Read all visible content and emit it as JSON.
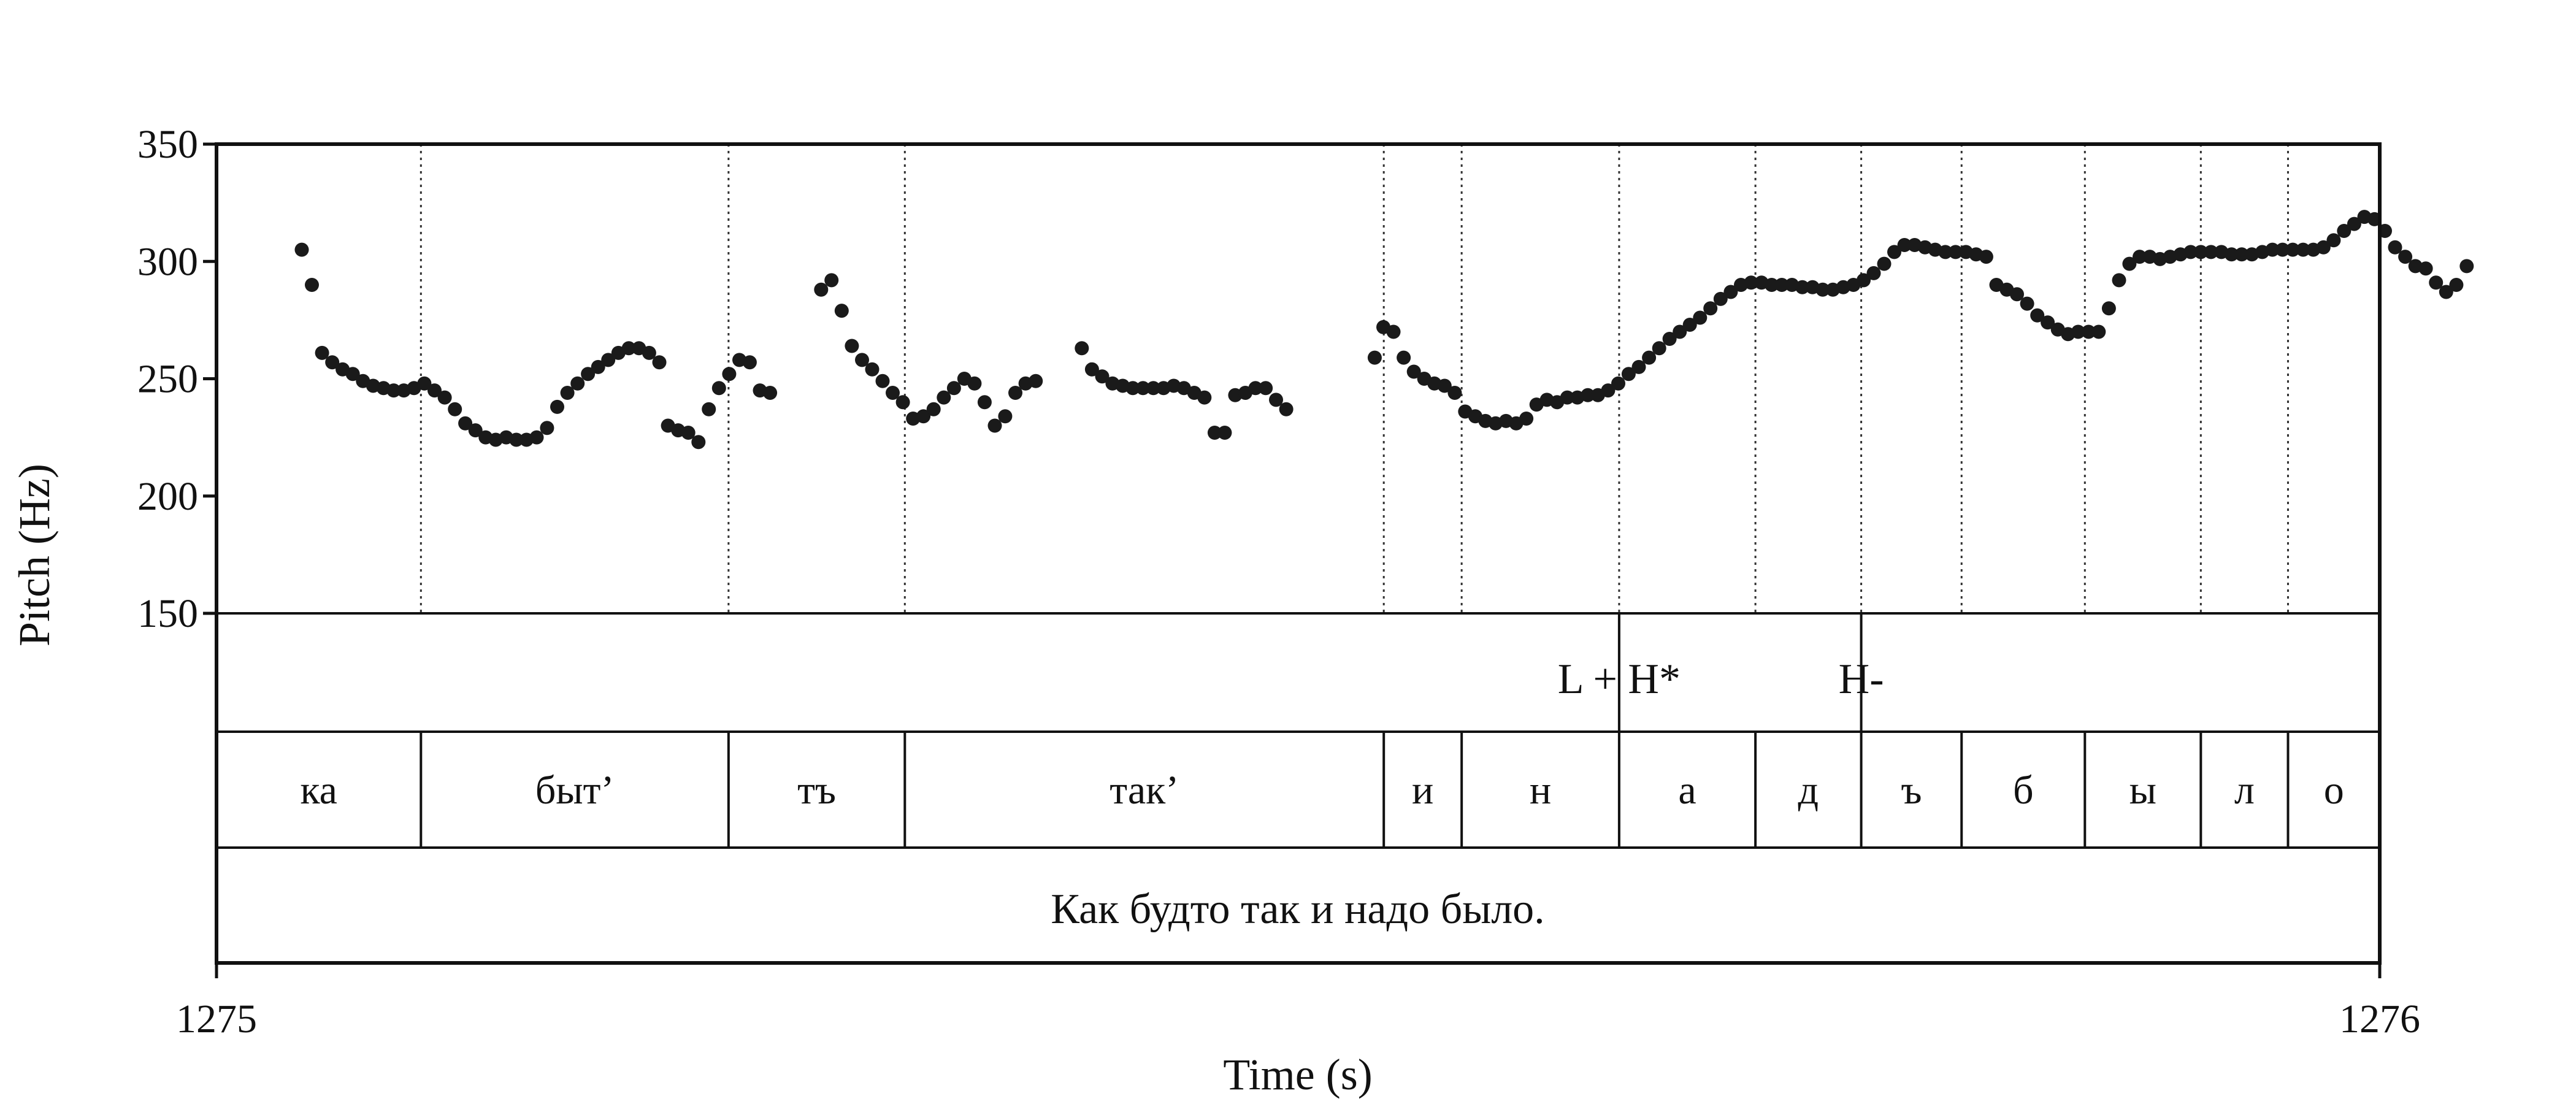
{
  "chart_data": {
    "type": "scatter",
    "title": "",
    "xlabel": "Time (s)",
    "ylabel": "Pitch (Hz)",
    "xlim": [
      1275,
      1276
    ],
    "ylim": [
      150,
      350
    ],
    "xticks": [
      "1275",
      "1276"
    ],
    "yticks": [
      "150",
      "200",
      "250",
      "300",
      "350"
    ],
    "grid": false,
    "marker_color": "#1a1a1a",
    "boundaries": [
      1275.0,
      1275.0945,
      1275.2367,
      1275.3182,
      1275.5396,
      1275.5756,
      1275.6484,
      1275.7114,
      1275.7603,
      1275.8067,
      1275.8637,
      1275.9173,
      1275.9576,
      1276.0
    ],
    "syllables": [
      "ка",
      "быт’",
      "тъ",
      "так’",
      "и",
      "н",
      "а",
      "д",
      "ъ",
      "б",
      "ы",
      "л",
      "о"
    ],
    "tones": [
      {
        "time": 1275.6484,
        "label": "L + H*"
      },
      {
        "time": 1275.7603,
        "label": "H-"
      }
    ],
    "sentence": "Как будто так и надо было.",
    "series": [
      {
        "points": [
          [
            1275.0394,
            305
          ],
          [
            1275.0441,
            290
          ],
          [
            1275.0488,
            261
          ],
          [
            1275.0535,
            257
          ],
          [
            1275.0583,
            254
          ],
          [
            1275.063,
            252
          ],
          [
            1275.0677,
            249
          ],
          [
            1275.0724,
            247
          ],
          [
            1275.0772,
            246
          ],
          [
            1275.0819,
            245
          ],
          [
            1275.0866,
            245
          ],
          [
            1275.0913,
            246
          ],
          [
            1275.0961,
            248
          ],
          [
            1275.1008,
            245
          ],
          [
            1275.1055,
            242
          ],
          [
            1275.1102,
            237
          ],
          [
            1275.115,
            231
          ],
          [
            1275.1197,
            228
          ],
          [
            1275.1244,
            225
          ],
          [
            1275.1291,
            224
          ],
          [
            1275.1339,
            225
          ],
          [
            1275.1386,
            224
          ],
          [
            1275.1433,
            224
          ],
          [
            1275.148,
            225
          ],
          [
            1275.1528,
            229
          ],
          [
            1275.1575,
            238
          ],
          [
            1275.1622,
            244
          ],
          [
            1275.1669,
            248
          ],
          [
            1275.1717,
            252
          ],
          [
            1275.1764,
            255
          ],
          [
            1275.1811,
            258
          ],
          [
            1275.1858,
            261
          ],
          [
            1275.1906,
            263
          ],
          [
            1275.1953,
            263
          ],
          [
            1275.2,
            261
          ],
          [
            1275.2047,
            257
          ],
          [
            1275.2087,
            230
          ],
          [
            1275.2134,
            228
          ],
          [
            1275.2181,
            227
          ],
          [
            1275.2228,
            223
          ],
          [
            1275.2276,
            237
          ],
          [
            1275.2323,
            246
          ],
          [
            1275.237,
            252
          ],
          [
            1275.2417,
            258
          ],
          [
            1275.2465,
            257
          ],
          [
            1275.2512,
            245
          ],
          [
            1275.2559,
            244
          ],
          [
            1275.2795,
            288
          ],
          [
            1275.2843,
            292
          ],
          [
            1275.289,
            279
          ],
          [
            1275.2937,
            264
          ],
          [
            1275.2984,
            258
          ],
          [
            1275.3031,
            254
          ],
          [
            1275.3079,
            249
          ],
          [
            1275.3126,
            244
          ],
          [
            1275.3173,
            240
          ],
          [
            1275.322,
            233
          ],
          [
            1275.3268,
            234
          ],
          [
            1275.3315,
            237
          ],
          [
            1275.3362,
            242
          ],
          [
            1275.3409,
            246
          ],
          [
            1275.3457,
            250
          ],
          [
            1275.3504,
            248
          ],
          [
            1275.3551,
            240
          ],
          [
            1275.3598,
            230
          ],
          [
            1275.3646,
            234
          ],
          [
            1275.3693,
            244
          ],
          [
            1275.374,
            248
          ],
          [
            1275.3787,
            249
          ],
          [
            1275.4,
            263
          ],
          [
            1275.4047,
            254
          ],
          [
            1275.4094,
            251
          ],
          [
            1275.4142,
            248
          ],
          [
            1275.4189,
            247
          ],
          [
            1275.4236,
            246
          ],
          [
            1275.4283,
            246
          ],
          [
            1275.4331,
            246
          ],
          [
            1275.4378,
            246
          ],
          [
            1275.4425,
            247
          ],
          [
            1275.4472,
            246
          ],
          [
            1275.452,
            244
          ],
          [
            1275.4567,
            242
          ],
          [
            1275.4614,
            227
          ],
          [
            1275.4661,
            227
          ],
          [
            1275.4709,
            243
          ],
          [
            1275.4756,
            244
          ],
          [
            1275.4803,
            246
          ],
          [
            1275.485,
            246
          ],
          [
            1275.4898,
            241
          ],
          [
            1275.4945,
            237
          ],
          [
            1275.5354,
            259
          ],
          [
            1275.5394,
            272
          ],
          [
            1275.5441,
            270
          ],
          [
            1275.5488,
            259
          ],
          [
            1275.5535,
            253
          ],
          [
            1275.5583,
            250
          ],
          [
            1275.563,
            248
          ],
          [
            1275.5677,
            247
          ],
          [
            1275.5724,
            244
          ],
          [
            1275.5772,
            236
          ],
          [
            1275.5819,
            234
          ],
          [
            1275.5866,
            232
          ],
          [
            1275.5913,
            231
          ],
          [
            1275.5961,
            232
          ],
          [
            1275.6008,
            231
          ],
          [
            1275.6055,
            233
          ],
          [
            1275.6102,
            239
          ],
          [
            1275.615,
            241
          ],
          [
            1275.6197,
            240
          ],
          [
            1275.6244,
            242
          ],
          [
            1275.6291,
            242
          ],
          [
            1275.6339,
            243
          ],
          [
            1275.6386,
            243
          ],
          [
            1275.6433,
            245
          ],
          [
            1275.648,
            248
          ],
          [
            1275.6528,
            252
          ],
          [
            1275.6575,
            255
          ],
          [
            1275.6622,
            259
          ],
          [
            1275.6669,
            263
          ],
          [
            1275.6717,
            267
          ],
          [
            1275.6764,
            270
          ],
          [
            1275.6811,
            273
          ],
          [
            1275.6858,
            276
          ],
          [
            1275.6906,
            280
          ],
          [
            1275.6953,
            284
          ],
          [
            1275.7,
            287
          ],
          [
            1275.7047,
            290
          ],
          [
            1275.7094,
            291
          ],
          [
            1275.7142,
            291
          ],
          [
            1275.7189,
            290
          ],
          [
            1275.7236,
            290
          ],
          [
            1275.7283,
            290
          ],
          [
            1275.7331,
            289
          ],
          [
            1275.7378,
            289
          ],
          [
            1275.7425,
            288
          ],
          [
            1275.7472,
            288
          ],
          [
            1275.752,
            289
          ],
          [
            1275.7567,
            290
          ],
          [
            1275.7614,
            292
          ],
          [
            1275.7661,
            295
          ],
          [
            1275.7709,
            299
          ],
          [
            1275.7756,
            304
          ],
          [
            1275.7803,
            307
          ],
          [
            1275.785,
            307
          ],
          [
            1275.7898,
            306
          ],
          [
            1275.7945,
            305
          ],
          [
            1275.7992,
            304
          ],
          [
            1275.8039,
            304
          ],
          [
            1275.8087,
            304
          ],
          [
            1275.8134,
            303
          ],
          [
            1275.8181,
            302
          ],
          [
            1275.8228,
            290
          ],
          [
            1275.8276,
            288
          ],
          [
            1275.8323,
            286
          ],
          [
            1275.837,
            282
          ],
          [
            1275.8417,
            277
          ],
          [
            1275.8465,
            274
          ],
          [
            1275.8512,
            271
          ],
          [
            1275.8559,
            269
          ],
          [
            1275.8606,
            270
          ],
          [
            1275.8654,
            270
          ],
          [
            1275.8701,
            270
          ],
          [
            1275.8748,
            280
          ],
          [
            1275.8795,
            292
          ],
          [
            1275.8843,
            299
          ],
          [
            1275.889,
            302
          ],
          [
            1275.8937,
            302
          ],
          [
            1275.8984,
            301
          ],
          [
            1275.9031,
            302
          ],
          [
            1275.9079,
            303
          ],
          [
            1275.9126,
            304
          ],
          [
            1275.9173,
            304
          ],
          [
            1275.922,
            304
          ],
          [
            1275.9268,
            304
          ],
          [
            1275.9315,
            303
          ],
          [
            1275.9362,
            303
          ],
          [
            1275.9409,
            303
          ],
          [
            1275.9457,
            304
          ],
          [
            1275.9504,
            305
          ],
          [
            1275.9551,
            305
          ],
          [
            1275.9598,
            305
          ],
          [
            1275.9646,
            305
          ],
          [
            1275.9693,
            305
          ],
          [
            1275.974,
            306
          ],
          [
            1275.9787,
            309
          ],
          [
            1275.9835,
            313
          ],
          [
            1275.9882,
            316
          ],
          [
            1275.9929,
            319
          ],
          [
            1275.9976,
            318
          ],
          [
            1276.0024,
            313
          ],
          [
            1276.0071,
            306
          ],
          [
            1276.0118,
            302
          ],
          [
            1276.0165,
            298
          ],
          [
            1276.0213,
            297
          ],
          [
            1276.026,
            291
          ],
          [
            1276.0307,
            287
          ],
          [
            1276.0354,
            290
          ],
          [
            1276.0402,
            298
          ]
        ]
      }
    ]
  }
}
